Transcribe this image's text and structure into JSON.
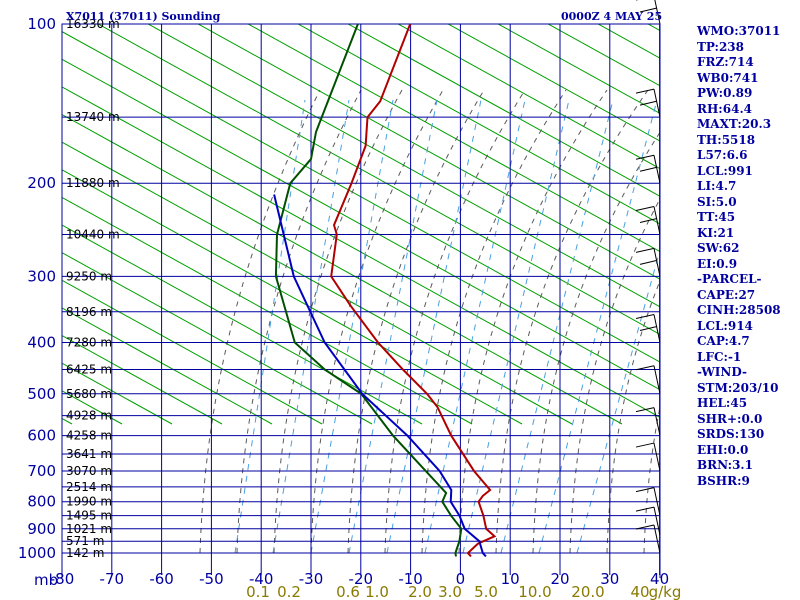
{
  "header": {
    "station_title": "X7011 (37011) Sounding",
    "time_label": "0000Z  4 MAY 25"
  },
  "indices": [
    "WMO:37011",
    "TP:238",
    "FRZ:714",
    "WB0:741",
    "PW:0.89",
    "RH:64.4",
    "MAXT:20.3",
    "TH:5518",
    "L57:6.6",
    "LCL:991",
    "LI:4.7",
    "SI:5.0",
    "TT:45",
    "KI:21",
    "SW:62",
    "EI:0.9",
    "-PARCEL-",
    "CAPE:27",
    "CINH:28508",
    "LCL:914",
    "CAP:4.7",
    "LFC:-1",
    "-WIND-",
    "STM:203/10",
    "HEL:45",
    "SHR+:0.0",
    "SRDS:130",
    "EHI:0.0",
    "BRN:3.1",
    "BSHR:9"
  ],
  "colors": {
    "grid": "#0000a0",
    "temperature": "#b00000",
    "dewpoint": "#005000",
    "parcel": "#0000c0",
    "dry_adiabat": "#00a000",
    "moist_adiabat": "#5a5a5a",
    "mixing_ratio": "#4aa0e0",
    "mixing_label": "#8a7a00"
  },
  "chart_data": {
    "type": "line",
    "title": "X7011 (37011) Sounding",
    "xlabel": "mb",
    "ylim": [
      1000,
      100
    ],
    "xlim": [
      -80,
      0
    ],
    "pressure_ticks": [
      100,
      200,
      300,
      400,
      500,
      600,
      700,
      800,
      900,
      1000
    ],
    "temperature_ticks": [
      "-80",
      "-70",
      "-60",
      "-50",
      "-40",
      "-30",
      "-20",
      "-10",
      "0",
      "10",
      "20",
      "30",
      "40"
    ],
    "mixing_ratio_ticks": [
      "0.1",
      "0.2",
      "0.6",
      "1.0",
      "2.0",
      "3.0",
      "5.0",
      "10.0",
      "20.0",
      "40",
      "g/kg"
    ],
    "heights": [
      {
        "p": 100,
        "label": "16330 m"
      },
      {
        "p": 150,
        "label": "13740 m"
      },
      {
        "p": 200,
        "label": "11880 m"
      },
      {
        "p": 250,
        "label": "10440 m"
      },
      {
        "p": 300,
        "label": "9250 m"
      },
      {
        "p": 350,
        "label": "8196 m"
      },
      {
        "p": 400,
        "label": "7280 m"
      },
      {
        "p": 450,
        "label": "6425 m"
      },
      {
        "p": 500,
        "label": "5680 m"
      },
      {
        "p": 550,
        "label": "4928 m"
      },
      {
        "p": 600,
        "label": "4258 m"
      },
      {
        "p": 650,
        "label": "3641 m"
      },
      {
        "p": 700,
        "label": "3070 m"
      },
      {
        "p": 750,
        "label": "2514 m"
      },
      {
        "p": 800,
        "label": "1990 m"
      },
      {
        "p": 850,
        "label": "1495 m"
      },
      {
        "p": 900,
        "label": "1021 m"
      },
      {
        "p": 950,
        "label": "571 m"
      },
      {
        "p": 1000,
        "label": "142 m"
      }
    ],
    "series": [
      {
        "name": "Temperature",
        "points": [
          [
            100,
            -68.5
          ],
          [
            140,
            -66.0
          ],
          [
            150,
            -66.8
          ],
          [
            170,
            -64.0
          ],
          [
            200,
            -62.7
          ],
          [
            240,
            -61.6
          ],
          [
            250,
            -60.0
          ],
          [
            300,
            -56.5
          ],
          [
            340,
            -49.5
          ],
          [
            400,
            -39.8
          ],
          [
            450,
            -31.8
          ],
          [
            500,
            -24.3
          ],
          [
            530,
            -20.7
          ],
          [
            600,
            -14.8
          ],
          [
            700,
            -6.3
          ],
          [
            760,
            -1.0
          ],
          [
            780,
            -1.8
          ],
          [
            800,
            -2.0
          ],
          [
            850,
            0.5
          ],
          [
            900,
            2.5
          ],
          [
            930,
            5.0
          ],
          [
            960,
            2.5
          ],
          [
            1000,
            1.5
          ],
          [
            1015,
            2.5
          ]
        ]
      },
      {
        "name": "Dew point",
        "points": [
          [
            100,
            -79.0
          ],
          [
            160,
            -75.5
          ],
          [
            180,
            -73.5
          ],
          [
            200,
            -75.0
          ],
          [
            250,
            -72.0
          ],
          [
            300,
            -67.6
          ],
          [
            400,
            -56.5
          ],
          [
            450,
            -47.5
          ],
          [
            500,
            -37.5
          ],
          [
            600,
            -26.5
          ],
          [
            700,
            -16.0
          ],
          [
            770,
            -9.5
          ],
          [
            800,
            -9.3
          ],
          [
            850,
            -6.0
          ],
          [
            900,
            -2.5
          ],
          [
            950,
            -1.5
          ],
          [
            1000,
            -1.0
          ],
          [
            1015,
            -0.5
          ]
        ]
      },
      {
        "name": "Parcel",
        "points": [
          [
            210,
            -77.0
          ],
          [
            300,
            -64.0
          ],
          [
            400,
            -50.5
          ],
          [
            500,
            -37.3
          ],
          [
            600,
            -23.6
          ],
          [
            700,
            -13.2
          ],
          [
            760,
            -8.8
          ],
          [
            800,
            -7.6
          ],
          [
            850,
            -4.3
          ],
          [
            900,
            -1.8
          ],
          [
            950,
            2.5
          ],
          [
            1000,
            4.5
          ],
          [
            1015,
            5.5
          ]
        ]
      }
    ]
  }
}
